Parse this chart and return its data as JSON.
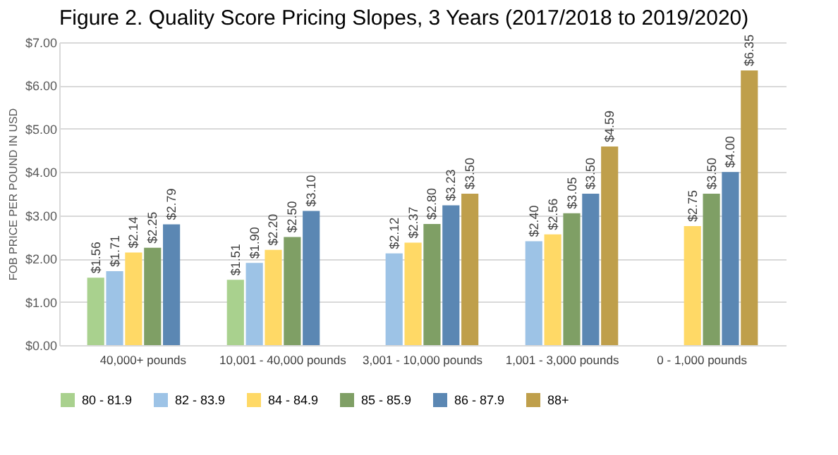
{
  "chart_data": {
    "type": "bar",
    "title": "Figure 2. Quality Score Pricing Slopes, 3 Years (2017/2018 to 2019/2020)",
    "ylabel": "FOB PRICE PER POUND IN USD",
    "categories": [
      "40,000+ pounds",
      "10,001 - 40,000 pounds",
      "3,001 - 10,000 pounds",
      "1,001 - 3,000 pounds",
      "0 - 1,000 pounds"
    ],
    "series": [
      {
        "name": "80 - 81.9",
        "color": "#a9d18e",
        "values": [
          1.56,
          1.51,
          null,
          null,
          null
        ],
        "value_labels": [
          "$1.56",
          "$1.51",
          null,
          null,
          null
        ]
      },
      {
        "name": "82 - 83.9",
        "color": "#9dc3e6",
        "values": [
          1.71,
          1.9,
          2.12,
          2.4,
          null
        ],
        "value_labels": [
          "$1.71",
          "$1.90",
          "$2.12",
          "$2.40",
          null
        ]
      },
      {
        "name": "84 - 84.9",
        "color": "#ffd966",
        "values": [
          2.14,
          2.2,
          2.37,
          2.56,
          2.75
        ],
        "value_labels": [
          "$2.14",
          "$2.20",
          "$2.37",
          "$2.56",
          "$2.75"
        ]
      },
      {
        "name": "85 - 85.9",
        "color": "#7f9f65",
        "values": [
          2.25,
          2.5,
          2.8,
          3.05,
          3.5
        ],
        "value_labels": [
          "$2.25",
          "$2.50",
          "$2.80",
          "$3.05",
          "$3.50"
        ]
      },
      {
        "name": "86 - 87.9",
        "color": "#5b87b3",
        "values": [
          2.79,
          3.1,
          3.23,
          3.5,
          4.0
        ],
        "value_labels": [
          "$2.79",
          "$3.10",
          "$3.23",
          "$3.50",
          "$4.00"
        ]
      },
      {
        "name": "88+",
        "color": "#bf9f4b",
        "values": [
          null,
          null,
          3.5,
          4.59,
          6.35
        ],
        "value_labels": [
          null,
          null,
          "$3.50",
          "$4.59",
          "$6.35"
        ]
      }
    ],
    "ylim": [
      0,
      7
    ],
    "yticks": [
      {
        "value": 0,
        "label": "$0.00"
      },
      {
        "value": 1,
        "label": "$1.00"
      },
      {
        "value": 2,
        "label": "$2.00"
      },
      {
        "value": 3,
        "label": "$3.00"
      },
      {
        "value": 4,
        "label": "$4.00"
      },
      {
        "value": 5,
        "label": "$5.00"
      },
      {
        "value": 6,
        "label": "$6.00"
      },
      {
        "value": 7,
        "label": "$7.00"
      }
    ],
    "grid": "y",
    "legend": "bottom"
  }
}
